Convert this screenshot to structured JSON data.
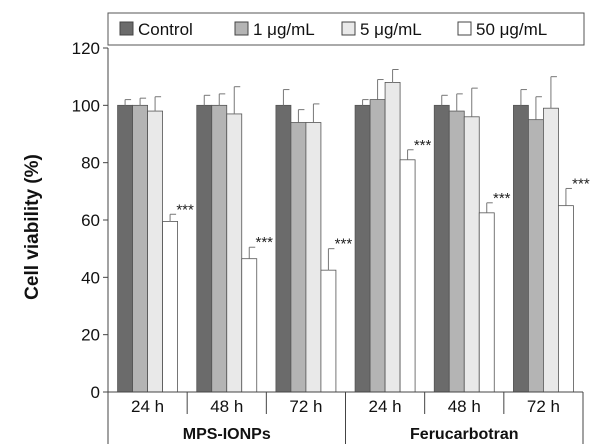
{
  "chart_data": {
    "type": "bar",
    "ylabel": "Cell viability (%)",
    "ylim": [
      0,
      120
    ],
    "yticks": [
      0,
      20,
      40,
      60,
      80,
      100,
      120
    ],
    "groups": [
      {
        "label": "MPS-IONPs",
        "categories": [
          "24 h",
          "48 h",
          "72 h"
        ]
      },
      {
        "label": "Ferucarbotran",
        "categories": [
          "24 h",
          "48 h",
          "72 h"
        ]
      }
    ],
    "categories": [
      "24 h",
      "48 h",
      "72 h",
      "24 h",
      "48 h",
      "72 h"
    ],
    "series": [
      {
        "name": "Control",
        "color": "#6b6b6b",
        "values": [
          100,
          100,
          100,
          100,
          100,
          100
        ],
        "errors": [
          2,
          3.5,
          5.5,
          2,
          3.5,
          5.5
        ]
      },
      {
        "name": "1 μg/mL",
        "color": "#b4b4b4",
        "values": [
          100,
          100,
          94,
          102,
          98,
          95
        ],
        "errors": [
          2.5,
          4,
          4.5,
          7,
          6,
          8
        ]
      },
      {
        "name": "5 μg/mL",
        "color": "#e9e9e9",
        "values": [
          98,
          97,
          94,
          108,
          96,
          99
        ],
        "errors": [
          5,
          9.5,
          6.5,
          4.5,
          10,
          11
        ]
      },
      {
        "name": "50 μg/mL",
        "color": "#ffffff",
        "values": [
          59.5,
          46.5,
          42.5,
          81,
          62.5,
          65
        ],
        "errors": [
          2.5,
          4,
          7.5,
          3.5,
          3.5,
          6
        ]
      }
    ],
    "annotations": [
      "***",
      "***",
      "***",
      "***",
      "***",
      "***"
    ],
    "legend_position": "top",
    "grid": false
  }
}
